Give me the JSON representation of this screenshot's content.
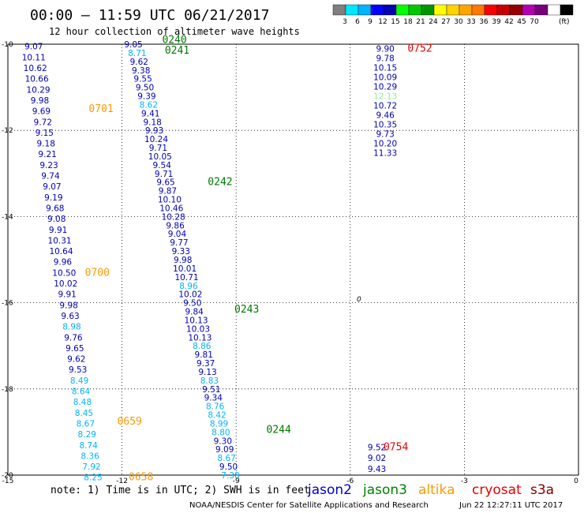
{
  "header": {
    "title": "00:00 – 11:59 UTC 06/21/2017",
    "subtitle": "12 hour collection of altimeter wave heights"
  },
  "colorbar": {
    "unit_label": "(ft)",
    "colors": [
      "#7f7f7f",
      "#00e6ff",
      "#00b4ff",
      "#0000ff",
      "#0000b4",
      "#00ff00",
      "#00c800",
      "#009600",
      "#ffff00",
      "#ffd200",
      "#ffa500",
      "#ff7800",
      "#ff0000",
      "#c80000",
      "#960000",
      "#b400b4",
      "#780078",
      "#ffffff",
      "#000000"
    ],
    "labels": [
      "3",
      "6",
      "9",
      "12",
      "15",
      "18",
      "21",
      "24",
      "27",
      "30",
      "33",
      "36",
      "39",
      "42",
      "45",
      "70"
    ]
  },
  "map": {
    "lon_range": [
      -15,
      0
    ],
    "lat_range": [
      -20,
      -10
    ],
    "x_ticks": [
      "-15",
      "-12",
      "-9",
      "-6",
      "-3",
      "0"
    ],
    "x_tick_values": [
      -15,
      -12,
      -9,
      -6,
      -3,
      0
    ],
    "y_ticks": [
      "-10",
      "-12",
      "-14",
      "-16",
      "-18",
      "-20"
    ],
    "y_tick_values": [
      -10,
      -12,
      -14,
      -16,
      -18,
      -20
    ],
    "zero_label": "0"
  },
  "chart_data": {
    "type": "scatter",
    "title": "00:00 – 11:59 UTC 06/21/2017",
    "xlim": [
      -15,
      0
    ],
    "ylim": [
      -20,
      -10
    ],
    "value_colors": {
      "dark_blue": "#0000b4",
      "cyan": "#00b4ff",
      "light_green": "#90ee90"
    },
    "points": [
      {
        "lon": -14.32,
        "lat": -10.05,
        "text": "9.07",
        "c": "dark_blue"
      },
      {
        "lon": -14.32,
        "lat": -10.3,
        "text": "10.11",
        "c": "dark_blue"
      },
      {
        "lon": -14.28,
        "lat": -10.55,
        "text": "10.62",
        "c": "dark_blue"
      },
      {
        "lon": -14.24,
        "lat": -10.8,
        "text": "10.66",
        "c": "dark_blue"
      },
      {
        "lon": -14.2,
        "lat": -11.05,
        "text": "10.29",
        "c": "dark_blue"
      },
      {
        "lon": -14.16,
        "lat": -11.3,
        "text": "9.98",
        "c": "dark_blue"
      },
      {
        "lon": -14.12,
        "lat": -11.55,
        "text": "9.69",
        "c": "dark_blue"
      },
      {
        "lon": -14.08,
        "lat": -11.8,
        "text": "9.72",
        "c": "dark_blue"
      },
      {
        "lon": -14.04,
        "lat": -12.05,
        "text": "9.15",
        "c": "dark_blue"
      },
      {
        "lon": -14.0,
        "lat": -12.3,
        "text": "9.18",
        "c": "dark_blue"
      },
      {
        "lon": -13.96,
        "lat": -12.55,
        "text": "9.21",
        "c": "dark_blue"
      },
      {
        "lon": -13.92,
        "lat": -12.8,
        "text": "9.23",
        "c": "dark_blue"
      },
      {
        "lon": -13.88,
        "lat": -13.05,
        "text": "9.74",
        "c": "dark_blue"
      },
      {
        "lon": -13.84,
        "lat": -13.3,
        "text": "9.07",
        "c": "dark_blue"
      },
      {
        "lon": -13.8,
        "lat": -13.55,
        "text": "9.19",
        "c": "dark_blue"
      },
      {
        "lon": -13.76,
        "lat": -13.8,
        "text": "9.68",
        "c": "dark_blue"
      },
      {
        "lon": -13.72,
        "lat": -14.05,
        "text": "9.08",
        "c": "dark_blue"
      },
      {
        "lon": -13.68,
        "lat": -14.3,
        "text": "9.91",
        "c": "dark_blue"
      },
      {
        "lon": -13.64,
        "lat": -14.55,
        "text": "10.31",
        "c": "dark_blue"
      },
      {
        "lon": -13.6,
        "lat": -14.8,
        "text": "10.64",
        "c": "dark_blue"
      },
      {
        "lon": -13.56,
        "lat": -15.05,
        "text": "9.96",
        "c": "dark_blue"
      },
      {
        "lon": -13.52,
        "lat": -15.3,
        "text": "10.50",
        "c": "dark_blue"
      },
      {
        "lon": -13.48,
        "lat": -15.55,
        "text": "10.02",
        "c": "dark_blue"
      },
      {
        "lon": -13.44,
        "lat": -15.8,
        "text": "9.91",
        "c": "dark_blue"
      },
      {
        "lon": -13.4,
        "lat": -16.05,
        "text": "9.98",
        "c": "dark_blue"
      },
      {
        "lon": -13.36,
        "lat": -16.3,
        "text": "9.63",
        "c": "dark_blue"
      },
      {
        "lon": -13.32,
        "lat": -16.55,
        "text": "8.98",
        "c": "cyan"
      },
      {
        "lon": -13.28,
        "lat": -16.8,
        "text": "9.76",
        "c": "dark_blue"
      },
      {
        "lon": -13.24,
        "lat": -17.05,
        "text": "9.65",
        "c": "dark_blue"
      },
      {
        "lon": -13.2,
        "lat": -17.3,
        "text": "9.62",
        "c": "dark_blue"
      },
      {
        "lon": -13.16,
        "lat": -17.55,
        "text": "9.53",
        "c": "dark_blue"
      },
      {
        "lon": -13.12,
        "lat": -17.8,
        "text": "8.49",
        "c": "cyan"
      },
      {
        "lon": -13.08,
        "lat": -18.05,
        "text": "8.64",
        "c": "cyan"
      },
      {
        "lon": -13.04,
        "lat": -18.3,
        "text": "8.48",
        "c": "cyan"
      },
      {
        "lon": -13.0,
        "lat": -18.55,
        "text": "8.45",
        "c": "cyan"
      },
      {
        "lon": -12.96,
        "lat": -18.8,
        "text": "8.67",
        "c": "cyan"
      },
      {
        "lon": -12.92,
        "lat": -19.05,
        "text": "8.29",
        "c": "cyan"
      },
      {
        "lon": -12.88,
        "lat": -19.3,
        "text": "8.74",
        "c": "cyan"
      },
      {
        "lon": -12.84,
        "lat": -19.55,
        "text": "8.36",
        "c": "cyan"
      },
      {
        "lon": -12.8,
        "lat": -19.8,
        "text": "7.92",
        "c": "cyan"
      },
      {
        "lon": -12.76,
        "lat": -20.05,
        "text": "8.25",
        "c": "cyan"
      },
      {
        "lon": -11.7,
        "lat": -10.0,
        "text": "9.05",
        "c": "dark_blue"
      },
      {
        "lon": -11.6,
        "lat": -10.2,
        "text": "8.71",
        "c": "cyan"
      },
      {
        "lon": -11.55,
        "lat": -10.4,
        "text": "9.62",
        "c": "dark_blue"
      },
      {
        "lon": -11.5,
        "lat": -10.6,
        "text": "9.38",
        "c": "dark_blue"
      },
      {
        "lon": -11.45,
        "lat": -10.8,
        "text": "9.55",
        "c": "dark_blue"
      },
      {
        "lon": -11.4,
        "lat": -11.0,
        "text": "9.50",
        "c": "dark_blue"
      },
      {
        "lon": -11.35,
        "lat": -11.2,
        "text": "9.39",
        "c": "dark_blue"
      },
      {
        "lon": -11.3,
        "lat": -11.4,
        "text": "8.62",
        "c": "cyan"
      },
      {
        "lon": -11.25,
        "lat": -11.6,
        "text": "9.41",
        "c": "dark_blue"
      },
      {
        "lon": -11.2,
        "lat": -11.8,
        "text": "9.18",
        "c": "dark_blue"
      },
      {
        "lon": -11.15,
        "lat": -12.0,
        "text": "9.93",
        "c": "dark_blue"
      },
      {
        "lon": -11.1,
        "lat": -12.2,
        "text": "10.24",
        "c": "dark_blue"
      },
      {
        "lon": -11.05,
        "lat": -12.4,
        "text": "9.71",
        "c": "dark_blue"
      },
      {
        "lon": -11.0,
        "lat": -12.6,
        "text": "10.05",
        "c": "dark_blue"
      },
      {
        "lon": -10.95,
        "lat": -12.8,
        "text": "9.54",
        "c": "dark_blue"
      },
      {
        "lon": -10.9,
        "lat": -13.0,
        "text": "9.71",
        "c": "dark_blue"
      },
      {
        "lon": -10.85,
        "lat": -13.2,
        "text": "9.65",
        "c": "dark_blue"
      },
      {
        "lon": -10.8,
        "lat": -13.4,
        "text": "9.87",
        "c": "dark_blue"
      },
      {
        "lon": -10.75,
        "lat": -13.6,
        "text": "10.10",
        "c": "dark_blue"
      },
      {
        "lon": -10.7,
        "lat": -13.8,
        "text": "10.46",
        "c": "dark_blue"
      },
      {
        "lon": -10.65,
        "lat": -14.0,
        "text": "10.28",
        "c": "dark_blue"
      },
      {
        "lon": -10.6,
        "lat": -14.2,
        "text": "9.86",
        "c": "dark_blue"
      },
      {
        "lon": -10.55,
        "lat": -14.4,
        "text": "9.04",
        "c": "dark_blue"
      },
      {
        "lon": -10.5,
        "lat": -14.6,
        "text": "9.77",
        "c": "dark_blue"
      },
      {
        "lon": -10.45,
        "lat": -14.8,
        "text": "9.33",
        "c": "dark_blue"
      },
      {
        "lon": -10.4,
        "lat": -15.0,
        "text": "9.98",
        "c": "dark_blue"
      },
      {
        "lon": -10.35,
        "lat": -15.2,
        "text": "10.01",
        "c": "dark_blue"
      },
      {
        "lon": -10.3,
        "lat": -15.4,
        "text": "10.71",
        "c": "dark_blue"
      },
      {
        "lon": -10.25,
        "lat": -15.6,
        "text": "8.96",
        "c": "cyan"
      },
      {
        "lon": -10.2,
        "lat": -15.8,
        "text": "10.02",
        "c": "dark_blue"
      },
      {
        "lon": -10.15,
        "lat": -16.0,
        "text": "9.50",
        "c": "dark_blue"
      },
      {
        "lon": -10.1,
        "lat": -16.2,
        "text": "9.84",
        "c": "dark_blue"
      },
      {
        "lon": -10.05,
        "lat": -16.4,
        "text": "10.13",
        "c": "dark_blue"
      },
      {
        "lon": -10.0,
        "lat": -16.6,
        "text": "10.03",
        "c": "dark_blue"
      },
      {
        "lon": -9.95,
        "lat": -16.8,
        "text": "10.13",
        "c": "dark_blue"
      },
      {
        "lon": -9.9,
        "lat": -17.0,
        "text": "8.86",
        "c": "cyan"
      },
      {
        "lon": -9.85,
        "lat": -17.2,
        "text": "9.81",
        "c": "dark_blue"
      },
      {
        "lon": -9.8,
        "lat": -17.4,
        "text": "9.37",
        "c": "dark_blue"
      },
      {
        "lon": -9.75,
        "lat": -17.6,
        "text": "9.13",
        "c": "dark_blue"
      },
      {
        "lon": -9.7,
        "lat": -17.8,
        "text": "8.83",
        "c": "cyan"
      },
      {
        "lon": -9.65,
        "lat": -18.0,
        "text": "9.51",
        "c": "dark_blue"
      },
      {
        "lon": -9.6,
        "lat": -18.2,
        "text": "9.34",
        "c": "dark_blue"
      },
      {
        "lon": -9.55,
        "lat": -18.4,
        "text": "8.76",
        "c": "cyan"
      },
      {
        "lon": -9.5,
        "lat": -18.6,
        "text": "8.42",
        "c": "cyan"
      },
      {
        "lon": -9.45,
        "lat": -18.8,
        "text": "8.99",
        "c": "cyan"
      },
      {
        "lon": -9.4,
        "lat": -19.0,
        "text": "8.80",
        "c": "cyan"
      },
      {
        "lon": -9.35,
        "lat": -19.2,
        "text": "9.30",
        "c": "dark_blue"
      },
      {
        "lon": -9.3,
        "lat": -19.4,
        "text": "9.09",
        "c": "dark_blue"
      },
      {
        "lon": -9.25,
        "lat": -19.6,
        "text": "8.67",
        "c": "cyan"
      },
      {
        "lon": -9.2,
        "lat": -19.8,
        "text": "9.50",
        "c": "dark_blue"
      },
      {
        "lon": -9.15,
        "lat": -20.0,
        "text": "7.38",
        "c": "cyan"
      },
      {
        "lon": -5.08,
        "lat": -10.1,
        "text": "9.90",
        "c": "dark_blue"
      },
      {
        "lon": -5.08,
        "lat": -10.32,
        "text": "9.78",
        "c": "dark_blue"
      },
      {
        "lon": -5.08,
        "lat": -10.54,
        "text": "10.15",
        "c": "dark_blue"
      },
      {
        "lon": -5.08,
        "lat": -10.76,
        "text": "10.09",
        "c": "dark_blue"
      },
      {
        "lon": -5.08,
        "lat": -10.98,
        "text": "10.29",
        "c": "dark_blue"
      },
      {
        "lon": -5.08,
        "lat": -11.2,
        "text": "12.13",
        "c": "light_green"
      },
      {
        "lon": -5.08,
        "lat": -11.42,
        "text": "10.72",
        "c": "dark_blue"
      },
      {
        "lon": -5.08,
        "lat": -11.64,
        "text": "9.46",
        "c": "dark_blue"
      },
      {
        "lon": -5.08,
        "lat": -11.86,
        "text": "10.35",
        "c": "dark_blue"
      },
      {
        "lon": -5.08,
        "lat": -12.08,
        "text": "9.73",
        "c": "dark_blue"
      },
      {
        "lon": -5.08,
        "lat": -12.3,
        "text": "10.20",
        "c": "dark_blue"
      },
      {
        "lon": -5.08,
        "lat": -12.52,
        "text": "11.33",
        "c": "dark_blue"
      },
      {
        "lon": -5.3,
        "lat": -19.35,
        "text": "9.52",
        "c": "dark_blue"
      },
      {
        "lon": -5.3,
        "lat": -19.6,
        "text": "9.02",
        "c": "dark_blue"
      },
      {
        "lon": -5.3,
        "lat": -19.85,
        "text": "9.43",
        "c": "dark_blue"
      }
    ],
    "pass_labels": [
      {
        "lon": -10.62,
        "lat": -9.9,
        "text": "0240",
        "c": "#007800"
      },
      {
        "lon": -10.55,
        "lat": -10.15,
        "text": "0241",
        "c": "#007800"
      },
      {
        "lon": -12.55,
        "lat": -11.5,
        "text": "0701",
        "c": "#ff9900"
      },
      {
        "lon": -9.42,
        "lat": -13.2,
        "text": "0242",
        "c": "#007800"
      },
      {
        "lon": -12.65,
        "lat": -15.3,
        "text": "0700",
        "c": "#ff9900"
      },
      {
        "lon": -8.72,
        "lat": -16.15,
        "text": "0243",
        "c": "#007800"
      },
      {
        "lon": -11.8,
        "lat": -18.75,
        "text": "0659",
        "c": "#ff9900"
      },
      {
        "lon": -7.88,
        "lat": -18.95,
        "text": "0244",
        "c": "#007800"
      },
      {
        "lon": -11.5,
        "lat": -20.05,
        "text": "0658",
        "c": "#ff9900"
      },
      {
        "lon": -4.17,
        "lat": -10.1,
        "text": "0752",
        "c": "#e60000"
      },
      {
        "lon": -4.8,
        "lat": -19.35,
        "text": "0754",
        "c": "#e60000"
      }
    ]
  },
  "footer": {
    "note": "note: 1) Time is in UTC; 2) SWH is in feet",
    "legend": [
      {
        "text": "jason2",
        "color": "#0000cc"
      },
      {
        "text": "jason3",
        "color": "#008000"
      },
      {
        "text": "altika",
        "color": "#ff9900"
      },
      {
        "text": "cryosat",
        "color": "#e60000"
      },
      {
        "text": "s3a",
        "color": "#800000"
      }
    ],
    "credit": "NOAA/NESDIS Center for Satellite Applications and Research",
    "timestamp": "Jun 22 12:27:11 UTC 2017"
  }
}
